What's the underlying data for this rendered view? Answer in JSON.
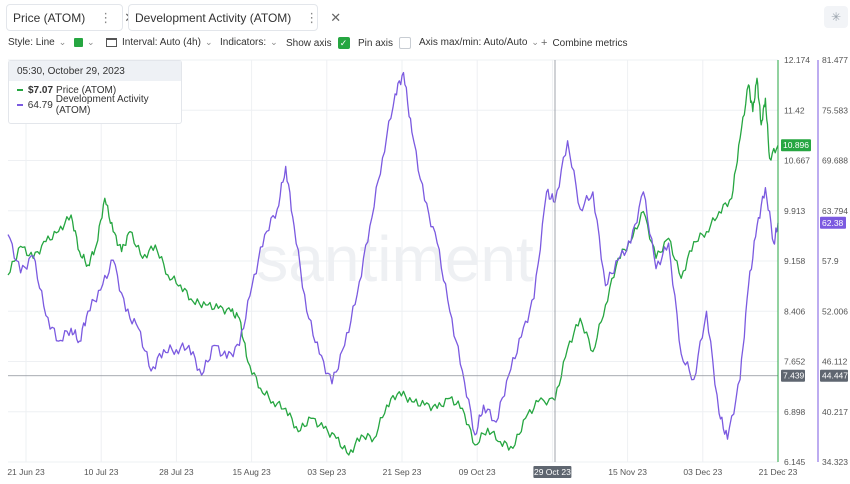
{
  "tabs": [
    {
      "label": "Price (ATOM)",
      "color": "#26a641"
    },
    {
      "label": "Development Activity (ATOM)",
      "color": "#7b5ae0"
    }
  ],
  "toolbar": {
    "style_label": "Style: Line",
    "interval_label": "Interval: Auto (4h)",
    "indicators_label": "Indicators:",
    "show_axis_label": "Show axis",
    "pin_axis_label": "Pin axis",
    "axis_maxmin_label": "Axis max/min: Auto/Auto",
    "combine_label": "Combine metrics"
  },
  "tooltip": {
    "date": "05:30, October 29, 2023",
    "price_value": "$7.07",
    "price_label": "Price (ATOM)",
    "dev_value": "64.79",
    "dev_label": "Development Activity (ATOM)"
  },
  "watermark": "santiment",
  "chart_data": {
    "type": "line",
    "x_tick_labels": [
      "21 Jun 23",
      "10 Jul 23",
      "28 Jul 23",
      "15 Aug 23",
      "03 Sep 23",
      "21 Sep 23",
      "09 Oct 23",
      "29 Oct 23",
      "15 Nov 23",
      "03 Dec 23",
      "21 Dec 23"
    ],
    "x_range": [
      "2023-06-21",
      "2023-12-21"
    ],
    "price_axis": {
      "ticks": [
        "12.174",
        "11.42",
        "10.667",
        "9.913",
        "9.158",
        "8.406",
        "7.652",
        "6.898",
        "6.145"
      ],
      "min": 6.145,
      "max": 12.174
    },
    "dev_axis": {
      "ticks": [
        "81.477",
        "75.583",
        "69.688",
        "63.794",
        "57.9",
        "52.006",
        "46.112",
        "40.217",
        "34.323"
      ],
      "min": 34.323,
      "max": 81.477
    },
    "price_last_label": "10.896",
    "dev_last_label": "62.38",
    "crosshair": {
      "date": "29 Oct 23",
      "price_label": "7.439",
      "dev_label": "44.447",
      "price_value": 7.439
    },
    "series": [
      {
        "name": "Price (ATOM)",
        "color": "#26a641",
        "points": [
          [
            "2023-06-21",
            8.95
          ],
          [
            "2023-06-24",
            9.38
          ],
          [
            "2023-06-27",
            9.2
          ],
          [
            "2023-06-30",
            9.45
          ],
          [
            "2023-07-03",
            9.6
          ],
          [
            "2023-07-06",
            9.85
          ],
          [
            "2023-07-08",
            9.3
          ],
          [
            "2023-07-10",
            9.1
          ],
          [
            "2023-07-12",
            9.4
          ],
          [
            "2023-07-14",
            10.1
          ],
          [
            "2023-07-16",
            9.6
          ],
          [
            "2023-07-18",
            9.3
          ],
          [
            "2023-07-20",
            9.6
          ],
          [
            "2023-07-23",
            9.2
          ],
          [
            "2023-07-26",
            9.4
          ],
          [
            "2023-07-29",
            8.95
          ],
          [
            "2023-08-01",
            8.8
          ],
          [
            "2023-08-04",
            8.55
          ],
          [
            "2023-08-07",
            8.5
          ],
          [
            "2023-08-10",
            8.45
          ],
          [
            "2023-08-13",
            8.4
          ],
          [
            "2023-08-15",
            8.3
          ],
          [
            "2023-08-17",
            7.65
          ],
          [
            "2023-08-20",
            7.25
          ],
          [
            "2023-08-23",
            7.05
          ],
          [
            "2023-08-26",
            6.95
          ],
          [
            "2023-08-29",
            6.6
          ],
          [
            "2023-09-01",
            6.8
          ],
          [
            "2023-09-04",
            6.65
          ],
          [
            "2023-09-07",
            6.5
          ],
          [
            "2023-09-10",
            6.25
          ],
          [
            "2023-09-13",
            6.55
          ],
          [
            "2023-09-16",
            6.5
          ],
          [
            "2023-09-19",
            7.0
          ],
          [
            "2023-09-22",
            7.2
          ],
          [
            "2023-09-25",
            7.05
          ],
          [
            "2023-09-28",
            7.0
          ],
          [
            "2023-10-01",
            6.95
          ],
          [
            "2023-10-04",
            7.1
          ],
          [
            "2023-10-07",
            6.95
          ],
          [
            "2023-10-10",
            6.4
          ],
          [
            "2023-10-13",
            6.65
          ],
          [
            "2023-10-16",
            6.45
          ],
          [
            "2023-10-19",
            6.35
          ],
          [
            "2023-10-22",
            6.8
          ],
          [
            "2023-10-25",
            7.05
          ],
          [
            "2023-10-29",
            7.07
          ],
          [
            "2023-11-01",
            7.85
          ],
          [
            "2023-11-04",
            8.3
          ],
          [
            "2023-11-07",
            7.8
          ],
          [
            "2023-11-10",
            8.5
          ],
          [
            "2023-11-13",
            9.2
          ],
          [
            "2023-11-16",
            9.45
          ],
          [
            "2023-11-19",
            9.9
          ],
          [
            "2023-11-22",
            9.2
          ],
          [
            "2023-11-25",
            9.5
          ],
          [
            "2023-11-28",
            8.9
          ],
          [
            "2023-12-01",
            9.45
          ],
          [
            "2023-12-04",
            9.6
          ],
          [
            "2023-12-07",
            9.9
          ],
          [
            "2023-12-10",
            10.1
          ],
          [
            "2023-12-12",
            11.0
          ],
          [
            "2023-12-14",
            11.8
          ],
          [
            "2023-12-15",
            11.4
          ],
          [
            "2023-12-16",
            11.9
          ],
          [
            "2023-12-17",
            11.2
          ],
          [
            "2023-12-18",
            11.6
          ],
          [
            "2023-12-19",
            10.7
          ],
          [
            "2023-12-21",
            10.896
          ]
        ]
      },
      {
        "name": "Development Activity (ATOM)",
        "color": "#7b5ae0",
        "points": [
          [
            "2023-06-21",
            61.0
          ],
          [
            "2023-06-24",
            56.5
          ],
          [
            "2023-06-27",
            58.5
          ],
          [
            "2023-06-30",
            51.5
          ],
          [
            "2023-07-03",
            48.5
          ],
          [
            "2023-07-06",
            50.0
          ],
          [
            "2023-07-08",
            48.5
          ],
          [
            "2023-07-10",
            52.0
          ],
          [
            "2023-07-13",
            54.5
          ],
          [
            "2023-07-16",
            58.0
          ],
          [
            "2023-07-19",
            52.0
          ],
          [
            "2023-07-22",
            50.0
          ],
          [
            "2023-07-25",
            45.0
          ],
          [
            "2023-07-28",
            47.5
          ],
          [
            "2023-07-31",
            47.5
          ],
          [
            "2023-08-03",
            48.0
          ],
          [
            "2023-08-06",
            44.5
          ],
          [
            "2023-08-09",
            48.0
          ],
          [
            "2023-08-12",
            46.5
          ],
          [
            "2023-08-15",
            48.0
          ],
          [
            "2023-08-18",
            55.0
          ],
          [
            "2023-08-21",
            61.0
          ],
          [
            "2023-08-24",
            64.0
          ],
          [
            "2023-08-26",
            69.0
          ],
          [
            "2023-08-28",
            62.0
          ],
          [
            "2023-08-31",
            52.0
          ],
          [
            "2023-09-03",
            47.0
          ],
          [
            "2023-09-06",
            43.5
          ],
          [
            "2023-09-09",
            48.0
          ],
          [
            "2023-09-12",
            54.0
          ],
          [
            "2023-09-15",
            62.0
          ],
          [
            "2023-09-18",
            70.0
          ],
          [
            "2023-09-21",
            77.5
          ],
          [
            "2023-09-23",
            80.0
          ],
          [
            "2023-09-25",
            73.0
          ],
          [
            "2023-09-28",
            65.0
          ],
          [
            "2023-10-01",
            60.0
          ],
          [
            "2023-10-04",
            52.0
          ],
          [
            "2023-10-07",
            45.0
          ],
          [
            "2023-10-10",
            37.5
          ],
          [
            "2023-10-12",
            41.0
          ],
          [
            "2023-10-15",
            39.0
          ],
          [
            "2023-10-18",
            44.5
          ],
          [
            "2023-10-21",
            49.0
          ],
          [
            "2023-10-24",
            53.5
          ],
          [
            "2023-10-27",
            66.0
          ],
          [
            "2023-10-29",
            64.79
          ],
          [
            "2023-11-01",
            72.0
          ],
          [
            "2023-11-04",
            64.0
          ],
          [
            "2023-11-07",
            66.0
          ],
          [
            "2023-11-10",
            55.0
          ],
          [
            "2023-11-13",
            58.0
          ],
          [
            "2023-11-16",
            60.0
          ],
          [
            "2023-11-19",
            66.0
          ],
          [
            "2023-11-22",
            57.0
          ],
          [
            "2023-11-25",
            60.0
          ],
          [
            "2023-11-28",
            47.0
          ],
          [
            "2023-12-01",
            44.0
          ],
          [
            "2023-12-04",
            52.0
          ],
          [
            "2023-12-07",
            40.0
          ],
          [
            "2023-12-09",
            37.0
          ],
          [
            "2023-12-12",
            44.0
          ],
          [
            "2023-12-14",
            55.0
          ],
          [
            "2023-12-16",
            62.0
          ],
          [
            "2023-12-18",
            66.5
          ],
          [
            "2023-12-20",
            60.0
          ],
          [
            "2023-12-21",
            62.38
          ]
        ]
      }
    ]
  }
}
